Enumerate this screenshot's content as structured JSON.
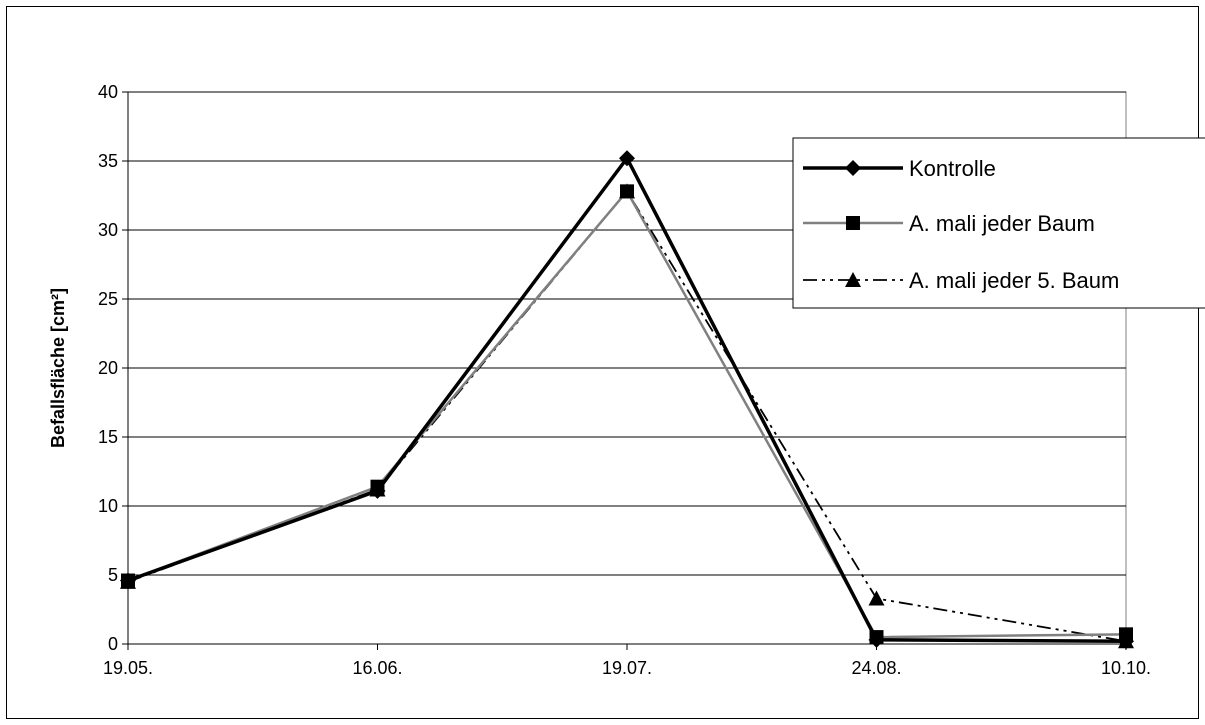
{
  "chart_data": {
    "type": "line",
    "title": "",
    "xlabel": "",
    "ylabel": "Befallsfläche [cm²]",
    "categories": [
      "19.05.",
      "16.06.",
      "19.07.",
      "24.08.",
      "10.10."
    ],
    "yticks": [
      "0",
      "5",
      "10",
      "15",
      "20",
      "25",
      "30",
      "35",
      "40"
    ],
    "ylim": [
      0,
      40
    ],
    "grid": "horizontal",
    "legend_position": "top-right",
    "series": [
      {
        "name": "Kontrolle",
        "values": [
          4.6,
          11.1,
          35.2,
          0.3,
          0.2
        ],
        "color": "#000000",
        "marker": "diamond",
        "line": "solid-thick"
      },
      {
        "name": "A. mali jeder Baum",
        "values": [
          4.6,
          11.4,
          32.8,
          0.5,
          0.7
        ],
        "color": "#808080",
        "marker": "square",
        "line": "solid"
      },
      {
        "name": "A. mali jeder 5. Baum",
        "values": [
          4.5,
          11.2,
          32.8,
          3.3,
          0.2
        ],
        "color": "#000000",
        "marker": "triangle",
        "line": "dash-dot"
      }
    ]
  }
}
